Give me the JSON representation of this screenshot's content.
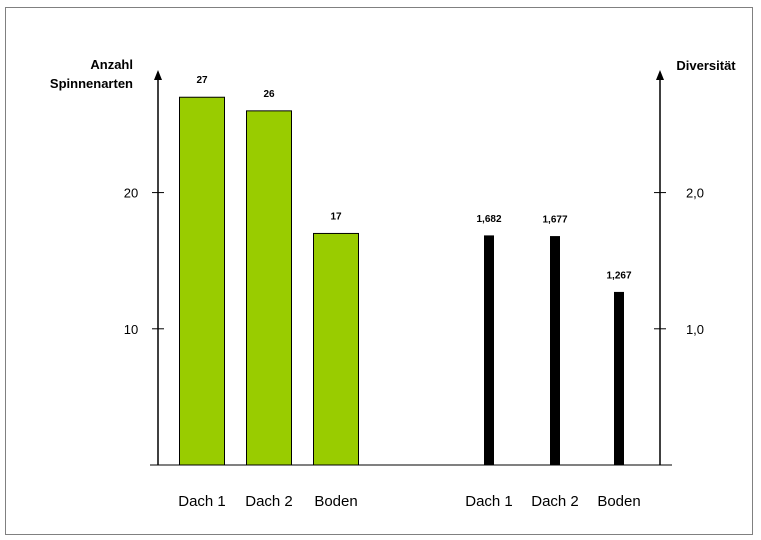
{
  "colors": {
    "species_bar": "#99cc00",
    "diversity_bar": "#000000",
    "axis": "#000000"
  },
  "chart_data": [
    {
      "type": "bar",
      "categories": [
        "Dach 1",
        "Dach 2",
        "Boden"
      ],
      "series": [
        {
          "name": "",
          "values": [
            27,
            26,
            17
          ],
          "value_labels": [
            "27",
            "26",
            "17"
          ]
        }
      ],
      "ylabel_lines": [
        "Anzahl",
        "Spinnenarten"
      ],
      "ylim": [
        0,
        29
      ],
      "yticks": [
        10,
        20
      ],
      "ytick_labels": [
        "10",
        "20"
      ],
      "axis_side": "left",
      "grid": false
    },
    {
      "type": "bar",
      "categories": [
        "Dach 1",
        "Dach 2",
        "Boden"
      ],
      "series": [
        {
          "name": "",
          "values": [
            1.682,
            1.677,
            1.267
          ],
          "value_labels": [
            "1,682",
            "1,677",
            "1,267"
          ]
        }
      ],
      "ylabel_lines": [
        "Diversität"
      ],
      "ylim": [
        0,
        2.9
      ],
      "yticks": [
        1.0,
        2.0
      ],
      "ytick_labels": [
        "1,0",
        "2,0"
      ],
      "axis_side": "right",
      "grid": false
    }
  ]
}
